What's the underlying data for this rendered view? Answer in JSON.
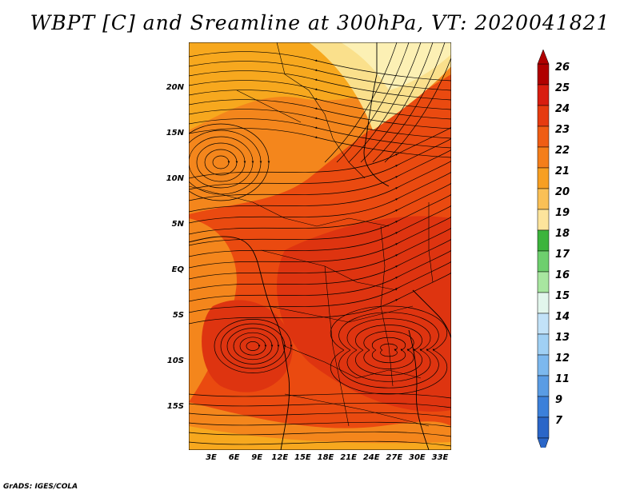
{
  "title": "WBPT [C] and Sreamline at 300hPa, VT: 2020041821",
  "credit": "GrADS: IGES/COLA",
  "map": {
    "lat_labels": [
      "20N",
      "15N",
      "10N",
      "5N",
      "EQ",
      "5S",
      "10S",
      "15S"
    ],
    "lon_labels": [
      "3E",
      "6E",
      "9E",
      "12E",
      "15E",
      "18E",
      "21E",
      "24E",
      "27E",
      "30E",
      "33E"
    ],
    "colors": {
      "orange_red": "#ea4a10",
      "red": "#de3410",
      "orange": "#f4861c",
      "light_orange": "#f7a81e",
      "pale_yellow": "#fae08c",
      "cream": "#fcf0b4"
    }
  },
  "colorbar": {
    "labels": [
      "26",
      "25",
      "24",
      "23",
      "22",
      "21",
      "20",
      "19",
      "18",
      "17",
      "16",
      "15",
      "14",
      "13",
      "12",
      "11",
      "9",
      "7"
    ],
    "colors": [
      "#b00000",
      "#d81d10",
      "#e63b10",
      "#ef5d14",
      "#f47e1a",
      "#f79f22",
      "#fac056",
      "#fde49c",
      "#3cb43c",
      "#6ecf6e",
      "#a8e6a0",
      "#e2f6ec",
      "#c2e2f8",
      "#a0d0f4",
      "#7cb8ee",
      "#5a9ce4",
      "#3c80da",
      "#2a66c8"
    ]
  }
}
